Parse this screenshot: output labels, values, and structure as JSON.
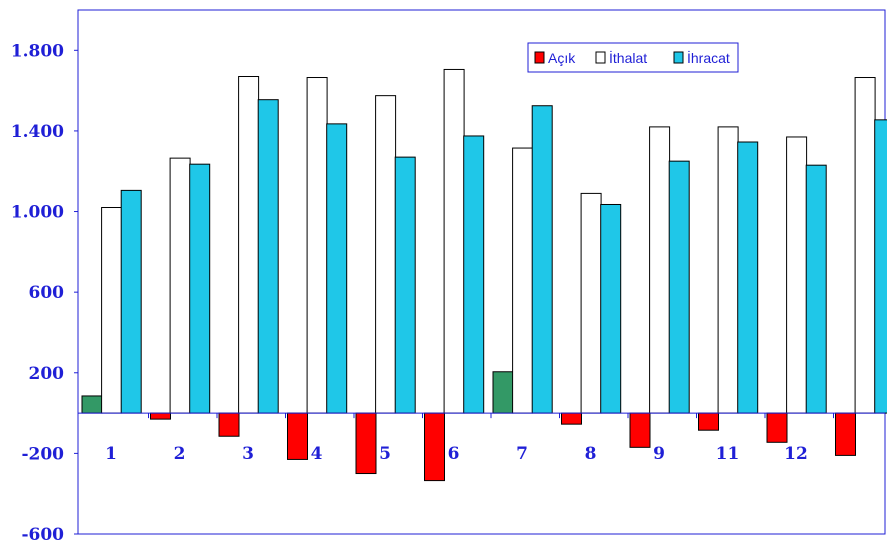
{
  "chart_data": {
    "type": "bar",
    "title": "",
    "xlabel": "",
    "ylabel": "",
    "ylim": [
      -600,
      2000
    ],
    "yticks": [
      -600,
      -200,
      200,
      600,
      1000,
      1400,
      1800
    ],
    "ytick_labels": [
      "-600",
      "-200",
      "200",
      "600",
      "1.000",
      "1.400",
      "1.800"
    ],
    "categories": [
      "1",
      "2",
      "3",
      "4",
      "5",
      "6",
      "7",
      "8",
      "9",
      "11",
      "12",
      ""
    ],
    "legend_position": "top-right",
    "grid": false,
    "series": [
      {
        "name": "Açık",
        "color": "#ff0000",
        "positive_color": "#339966",
        "values": [
          85,
          -30,
          -115,
          -230,
          -300,
          -335,
          205,
          -55,
          -170,
          -85,
          -145,
          -210
        ]
      },
      {
        "name": "İthalat",
        "color": "#ffffff",
        "values": [
          1020,
          1265,
          1670,
          1665,
          1575,
          1705,
          1315,
          1090,
          1420,
          1420,
          1370,
          1665
        ]
      },
      {
        "name": "İhracat",
        "color": "#1fc7e8",
        "values": [
          1105,
          1235,
          1555,
          1435,
          1270,
          1375,
          1525,
          1035,
          1250,
          1345,
          1230,
          1455
        ]
      }
    ]
  }
}
